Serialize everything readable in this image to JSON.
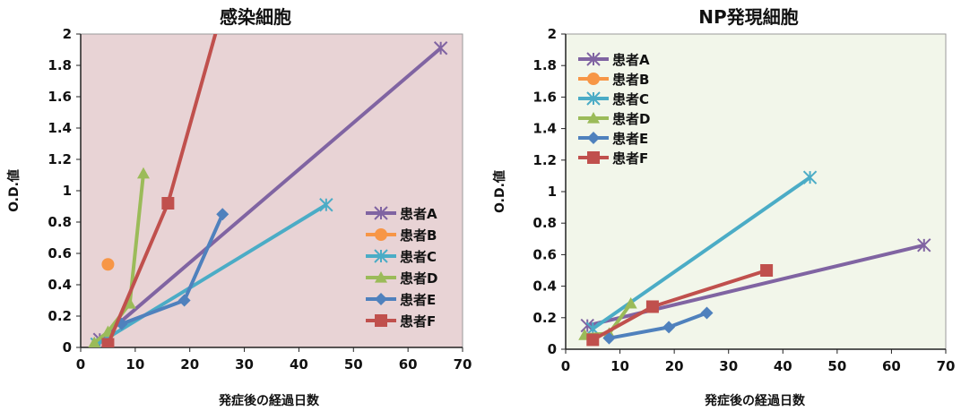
{
  "chart_data": [
    {
      "type": "line",
      "title": "感染細胞",
      "xlabel": "発症後の経過日数",
      "ylabel": "O.D.値",
      "xlim": [
        0,
        70
      ],
      "ylim": [
        0,
        2
      ],
      "xticks": [
        "0",
        "10",
        "20",
        "30",
        "40",
        "50",
        "60",
        "70"
      ],
      "yticks": [
        "0",
        "0.2",
        "0.4",
        "0.6",
        "0.8",
        "1",
        "1.2",
        "1.4",
        "1.6",
        "1.8",
        "2"
      ],
      "plot_background": "#e8d3d5",
      "legend_position": "right",
      "series": [
        {
          "name": "患者A",
          "color": "#8064a2",
          "marker": "star",
          "points": [
            [
              3.5,
              0.05
            ],
            [
              66,
              1.91
            ]
          ]
        },
        {
          "name": "患者B",
          "color": "#f79646",
          "marker": "circle",
          "points": [
            [
              5,
              0.53
            ]
          ]
        },
        {
          "name": "患者C",
          "color": "#4bacc6",
          "marker": "star",
          "points": [
            [
              3,
              0.02
            ],
            [
              45,
              0.91
            ]
          ]
        },
        {
          "name": "患者D",
          "color": "#9bbb59",
          "marker": "triangle",
          "points": [
            [
              2.5,
              0.03
            ],
            [
              5,
              0.1
            ],
            [
              9,
              0.28
            ],
            [
              11.5,
              1.11
            ]
          ]
        },
        {
          "name": "患者E",
          "color": "#4f81bd",
          "marker": "diamond",
          "points": [
            [
              7.5,
              0.15
            ],
            [
              19,
              0.3
            ],
            [
              26,
              0.85
            ]
          ]
        },
        {
          "name": "患者F",
          "color": "#c0504d",
          "marker": "square",
          "points": [
            [
              5,
              0.02
            ],
            [
              16,
              0.92
            ],
            [
              25.5,
              2.1
            ]
          ]
        }
      ]
    },
    {
      "type": "line",
      "title": "NP発現細胞",
      "xlabel": "発症後の経過日数",
      "ylabel": "O.D.値",
      "xlim": [
        0,
        70
      ],
      "ylim": [
        0,
        2
      ],
      "xticks": [
        "0",
        "10",
        "20",
        "30",
        "40",
        "50",
        "60",
        "70"
      ],
      "yticks": [
        "0",
        "0.2",
        "0.4",
        "0.6",
        "0.8",
        "1",
        "1.2",
        "1.4",
        "1.6",
        "1.8",
        "2"
      ],
      "plot_background": "#f2f6ea",
      "legend_position": "top-left",
      "series": [
        {
          "name": "患者A",
          "color": "#8064a2",
          "marker": "star",
          "points": [
            [
              4,
              0.15
            ],
            [
              66,
              0.66
            ]
          ]
        },
        {
          "name": "患者B",
          "color": "#f79646",
          "marker": "circle",
          "points": []
        },
        {
          "name": "患者C",
          "color": "#4bacc6",
          "marker": "star",
          "points": [
            [
              5,
              0.13
            ],
            [
              45,
              1.09
            ]
          ]
        },
        {
          "name": "患者D",
          "color": "#9bbb59",
          "marker": "triangle",
          "points": [
            [
              3.5,
              0.09
            ],
            [
              8,
              0.1
            ],
            [
              12,
              0.29
            ]
          ]
        },
        {
          "name": "患者E",
          "color": "#4f81bd",
          "marker": "diamond",
          "points": [
            [
              8,
              0.07
            ],
            [
              19,
              0.14
            ],
            [
              26,
              0.23
            ]
          ]
        },
        {
          "name": "患者F",
          "color": "#c0504d",
          "marker": "square",
          "points": [
            [
              5,
              0.06
            ],
            [
              16,
              0.27
            ],
            [
              37,
              0.5
            ]
          ]
        }
      ]
    }
  ]
}
